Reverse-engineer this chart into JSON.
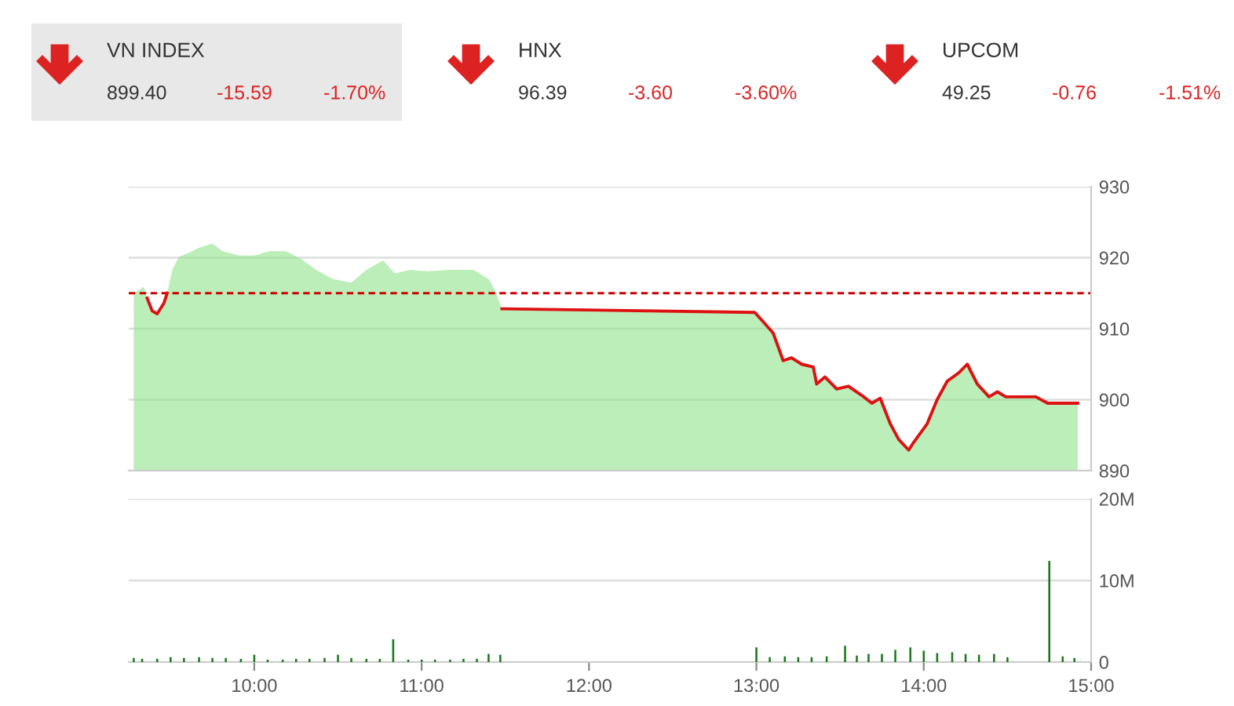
{
  "chart_data": [
    {
      "type": "other",
      "title": "VN INDEX",
      "annotations": [
        "899.40",
        "-15.59",
        "-1.70%"
      ]
    },
    {
      "type": "other",
      "title": "HNX",
      "annotations": [
        "96.39",
        "-3.60",
        "-3.60%"
      ]
    },
    {
      "type": "other",
      "title": "UPCOM",
      "annotations": [
        "49.25",
        "-0.76",
        "-1.51%"
      ]
    },
    {
      "type": "area",
      "x": [
        9.28,
        9.34,
        9.36,
        9.39,
        9.42,
        9.46,
        9.48,
        9.51,
        9.55,
        9.63,
        9.67,
        9.75,
        9.81,
        9.91,
        10.0,
        10.09,
        10.19,
        10.28,
        10.37,
        10.47,
        10.58,
        10.67,
        10.77,
        10.84,
        10.93,
        11.03,
        11.17,
        11.31,
        11.4,
        11.44,
        11.48,
        12.99,
        13.04,
        13.1,
        13.16,
        13.21,
        13.27,
        13.34,
        13.36,
        13.41,
        13.48,
        13.55,
        13.63,
        13.69,
        13.74,
        13.8,
        13.85,
        13.91,
        13.94,
        14.02,
        14.08,
        14.14,
        14.21,
        14.26,
        14.32,
        14.39,
        14.44,
        14.49,
        14.67,
        14.74,
        14.92
      ],
      "series": [
        {
          "color": "#8fe28a",
          "values": [
            915.0,
            915.9,
            914.3,
            912.5,
            912.1,
            913.6,
            915.0,
            918.3,
            920.1,
            920.9,
            921.4,
            922.0,
            920.9,
            920.3,
            920.3,
            920.9,
            920.9,
            919.8,
            918.3,
            917.0,
            916.5,
            918.3,
            919.6,
            917.8,
            918.3,
            918.1,
            918.3,
            918.3,
            917.0,
            915.4,
            912.8,
            912.3,
            911.0,
            909.4,
            905.5,
            905.9,
            905.0,
            904.6,
            902.2,
            903.2,
            901.5,
            901.9,
            900.6,
            899.5,
            900.2,
            896.6,
            894.4,
            892.9,
            894.0,
            896.6,
            900.0,
            902.6,
            903.8,
            905.0,
            902.2,
            900.4,
            901.1,
            900.4,
            900.4,
            899.5,
            899.5
          ]
        },
        {
          "type": "line",
          "color": "#dd1111",
          "values": [
            null,
            null,
            914.3,
            912.5,
            912.1,
            913.6,
            915.0,
            null,
            null,
            null,
            null,
            null,
            null,
            null,
            null,
            null,
            null,
            null,
            null,
            null,
            null,
            null,
            null,
            null,
            null,
            null,
            null,
            null,
            null,
            null,
            912.8,
            912.3,
            911.0,
            909.4,
            905.5,
            905.9,
            905.0,
            904.6,
            902.2,
            903.2,
            901.5,
            901.9,
            900.6,
            899.5,
            900.2,
            896.6,
            894.4,
            892.9,
            894.0,
            896.6,
            900.0,
            902.6,
            903.8,
            905.0,
            902.2,
            900.4,
            901.1,
            900.4,
            900.4,
            899.5,
            899.5
          ]
        }
      ],
      "xlim": [
        9.25,
        15
      ],
      "ylim": [
        890,
        930
      ],
      "yticks": [
        890,
        900,
        910,
        920,
        930
      ],
      "grid": "y",
      "tick_labels": "y",
      "ref_lines": [
        {
          "axis": "y",
          "value": 915,
          "color": "#cc0000",
          "line_style": "dashed"
        }
      ]
    },
    {
      "type": "bar",
      "color": "#1a7a1a",
      "x": [
        9.28,
        9.33,
        9.42,
        9.5,
        9.58,
        9.67,
        9.75,
        9.83,
        9.92,
        10.0,
        10.08,
        10.17,
        10.25,
        10.33,
        10.42,
        10.5,
        10.58,
        10.67,
        10.75,
        10.83,
        10.92,
        11.0,
        11.08,
        11.17,
        11.25,
        11.33,
        11.4,
        11.47,
        13.0,
        13.08,
        13.17,
        13.25,
        13.33,
        13.42,
        13.53,
        13.6,
        13.67,
        13.75,
        13.83,
        13.92,
        14.0,
        14.08,
        14.17,
        14.25,
        14.33,
        14.42,
        14.5,
        14.75,
        14.83,
        14.9
      ],
      "values": [
        0.5,
        0.4,
        0.4,
        0.6,
        0.5,
        0.6,
        0.5,
        0.5,
        0.4,
        0.9,
        0.3,
        0.3,
        0.4,
        0.4,
        0.5,
        0.9,
        0.5,
        0.4,
        0.4,
        2.8,
        0.3,
        0.3,
        0.3,
        0.3,
        0.4,
        0.4,
        1.0,
        0.9,
        1.8,
        0.6,
        0.7,
        0.6,
        0.6,
        0.7,
        2.0,
        0.8,
        1.0,
        1.0,
        1.5,
        1.8,
        1.4,
        1.1,
        1.2,
        1.0,
        0.9,
        1.0,
        0.6,
        12.4,
        0.7,
        0.5
      ],
      "xlim": [
        9.25,
        15
      ],
      "xticks": [
        {
          "value": 10,
          "label": "10:00"
        },
        {
          "value": 11,
          "label": "11:00"
        },
        {
          "value": 12,
          "label": "12:00"
        },
        {
          "value": 13,
          "label": "13:00"
        },
        {
          "value": 14,
          "label": "14:00"
        },
        {
          "value": 15,
          "label": "15:00"
        }
      ],
      "ylim": [
        0,
        20
      ],
      "yticks": [
        {
          "value": 0,
          "label": "0"
        },
        {
          "value": 10,
          "label": "10M"
        },
        {
          "value": 20,
          "label": "20M"
        }
      ],
      "grid": "y"
    }
  ]
}
